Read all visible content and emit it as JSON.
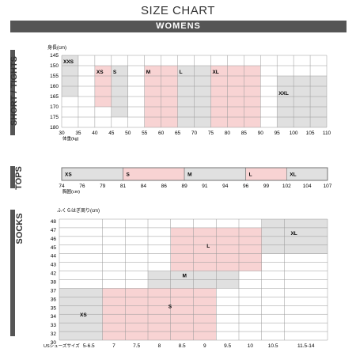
{
  "title": "SIZE CHART",
  "banner": "WOMENS",
  "colors": {
    "pink": "#f8d3d3",
    "grey": "#e0e0e0",
    "line": "#999",
    "bar": "#555"
  },
  "short": {
    "label": "SHORT / TIGHTS",
    "y_unit": "身長(cm)",
    "x_unit": "体重(kg)",
    "y_ticks": [
      "145",
      "150",
      "155",
      "160",
      "165",
      "170",
      "175",
      "180"
    ],
    "x_ticks": [
      "30",
      "35",
      "40",
      "45",
      "50",
      "55",
      "60",
      "65",
      "70",
      "75",
      "80",
      "85",
      "90",
      "95",
      "100",
      "105",
      "110"
    ],
    "sizes": [
      {
        "label": "XXS",
        "color": "grey",
        "x": [
          30,
          35
        ],
        "y": [
          145,
          165
        ]
      },
      {
        "label": "XS",
        "color": "pink",
        "x": [
          40,
          45
        ],
        "y": [
          150,
          170
        ]
      },
      {
        "label": "S",
        "color": "grey",
        "x": [
          45,
          50
        ],
        "y": [
          150,
          175
        ]
      },
      {
        "label": "M",
        "color": "pink",
        "x": [
          55,
          65
        ],
        "y": [
          150,
          180
        ]
      },
      {
        "label": "L",
        "color": "grey",
        "x": [
          65,
          75
        ],
        "y": [
          150,
          180
        ]
      },
      {
        "label": "XL",
        "color": "pink",
        "x": [
          75,
          90
        ],
        "y": [
          150,
          180
        ]
      },
      {
        "label": "XXL",
        "color": "grey",
        "x": [
          95,
          110
        ],
        "y": [
          155,
          180
        ]
      }
    ]
  },
  "tops": {
    "label": "TOPS",
    "x_unit": "胸囲(cm)",
    "x_ticks": [
      "74",
      "76",
      "79",
      "81",
      "84",
      "86",
      "89",
      "91",
      "94",
      "96",
      "99",
      "102",
      "104",
      "107"
    ],
    "sizes": [
      {
        "label": "XS",
        "color": "grey"
      },
      {
        "label": "S",
        "color": "pink"
      },
      {
        "label": "M",
        "color": "grey"
      },
      {
        "label": "L",
        "color": "pink"
      },
      {
        "label": "XL",
        "color": "grey"
      }
    ]
  },
  "socks": {
    "label": "SOCKS",
    "y_unit": "ふくらはぎ周り(cm)",
    "x_unit": "USシューズサイズ",
    "y_ticks": [
      "48",
      "47",
      "46",
      "45",
      "44",
      "43",
      "42",
      "38",
      "37",
      "36",
      "35",
      "34",
      "33",
      "32",
      "30"
    ],
    "x_ticks": [
      "5-6.5",
      "7",
      "7.5",
      "8",
      "8.5",
      "9",
      "9.5",
      "10",
      "10.5",
      "11.5-14"
    ],
    "sizes": [
      {
        "label": "XS",
        "color": "grey"
      },
      {
        "label": "S",
        "color": "pink"
      },
      {
        "label": "M",
        "color": "grey"
      },
      {
        "label": "L",
        "color": "pink"
      },
      {
        "label": "XL",
        "color": "grey"
      }
    ]
  }
}
